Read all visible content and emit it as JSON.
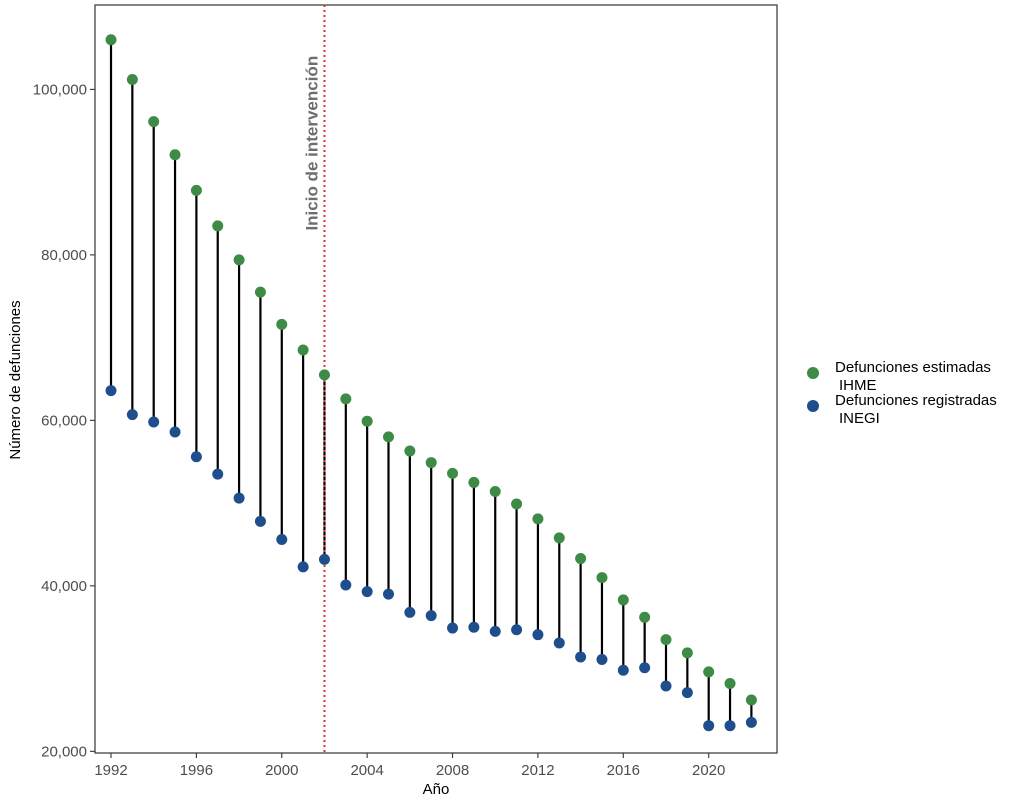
{
  "chart_data": {
    "type": "scatter",
    "subtype": "dumbbell",
    "title": "",
    "xlabel": "Año",
    "ylabel": "Número de defunciones",
    "xlim": [
      1991.25,
      2023.2
    ],
    "ylim": [
      19800,
      110200
    ],
    "x_ticks": [
      1992,
      1996,
      2000,
      2004,
      2008,
      2012,
      2016,
      2020
    ],
    "y_ticks": [
      20000,
      40000,
      60000,
      80000,
      100000
    ],
    "y_tick_labels": [
      "20,000",
      "40,000",
      "60,000",
      "80,000",
      "100,000"
    ],
    "grid": false,
    "legend_position": "right",
    "x": [
      1992,
      1993,
      1994,
      1995,
      1996,
      1997,
      1998,
      1999,
      2000,
      2001,
      2002,
      2003,
      2004,
      2005,
      2006,
      2007,
      2008,
      2009,
      2010,
      2011,
      2012,
      2013,
      2014,
      2015,
      2016,
      2017,
      2018,
      2019,
      2020,
      2021,
      2022
    ],
    "series": [
      {
        "name": "Defunciones estimadas IHME",
        "legend_lines": [
          "Defunciones estimadas",
          "IHME"
        ],
        "color": "#3d8b45",
        "values": [
          106000,
          101200,
          96100,
          92100,
          87800,
          83500,
          79400,
          75500,
          71600,
          68500,
          65500,
          62600,
          59900,
          58000,
          56300,
          54900,
          53600,
          52500,
          51400,
          49900,
          48100,
          45800,
          43300,
          41000,
          38300,
          36200,
          33500,
          31900,
          29600,
          28200,
          26200
        ]
      },
      {
        "name": "Defunciones registradas INEGI",
        "legend_lines": [
          "Defunciones registradas",
          "INEGI"
        ],
        "color": "#1f4e8c",
        "values": [
          63600,
          60700,
          59800,
          58600,
          55600,
          53500,
          50600,
          47800,
          45600,
          42300,
          43200,
          40100,
          39300,
          39000,
          36800,
          36400,
          34900,
          35000,
          34500,
          34700,
          34100,
          33100,
          31400,
          31100,
          29800,
          30100,
          27900,
          27100,
          23100,
          23100,
          23500
        ]
      }
    ],
    "annotations": [
      {
        "text": "Inicio de intervención",
        "x": 2002,
        "line_style": "dotted",
        "line_color": "#e03131"
      }
    ]
  }
}
